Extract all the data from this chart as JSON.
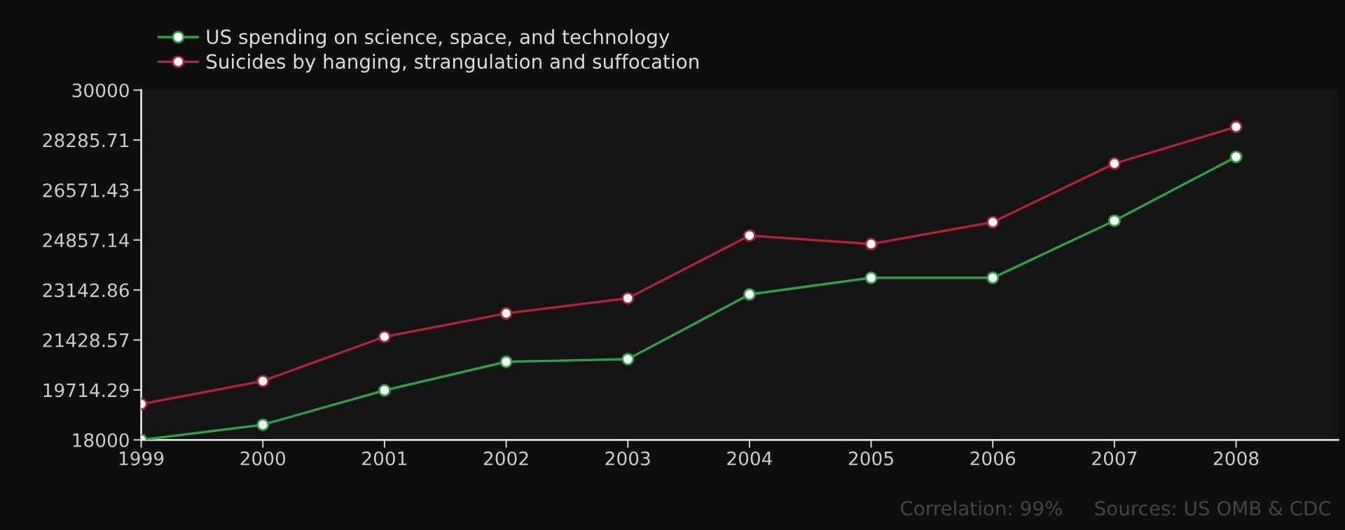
{
  "chart_data": {
    "type": "line",
    "x": [
      1999,
      2000,
      2001,
      2002,
      2003,
      2004,
      2005,
      2006,
      2007,
      2008
    ],
    "series": [
      {
        "name": "US spending on science, space, and technology",
        "color": "#2e9e48",
        "values": [
          18000,
          18520,
          19700,
          20680,
          20770,
          22990,
          23560,
          23560,
          25520,
          27710
        ]
      },
      {
        "name": "Suicides by hanging, strangulation and suffocation",
        "color": "#b0223a",
        "values": [
          19230,
          20020,
          21540,
          22340,
          22860,
          25010,
          24720,
          25470,
          27480,
          28740
        ]
      }
    ],
    "xlim": [
      1999,
      2008.84
    ],
    "xticks": [
      1999,
      2000,
      2001,
      2002,
      2003,
      2004,
      2005,
      2006,
      2007,
      2008
    ],
    "ylim": [
      18000,
      30000
    ],
    "yticks": [
      18000,
      19714.29,
      21428.57,
      23142.86,
      24857.14,
      26571.43,
      28285.71,
      30000
    ],
    "marker": "circle",
    "legend": "top left",
    "grid": false,
    "annotations": [
      "Correlation: 99%",
      "Sources: US OMB & CDC"
    ]
  }
}
